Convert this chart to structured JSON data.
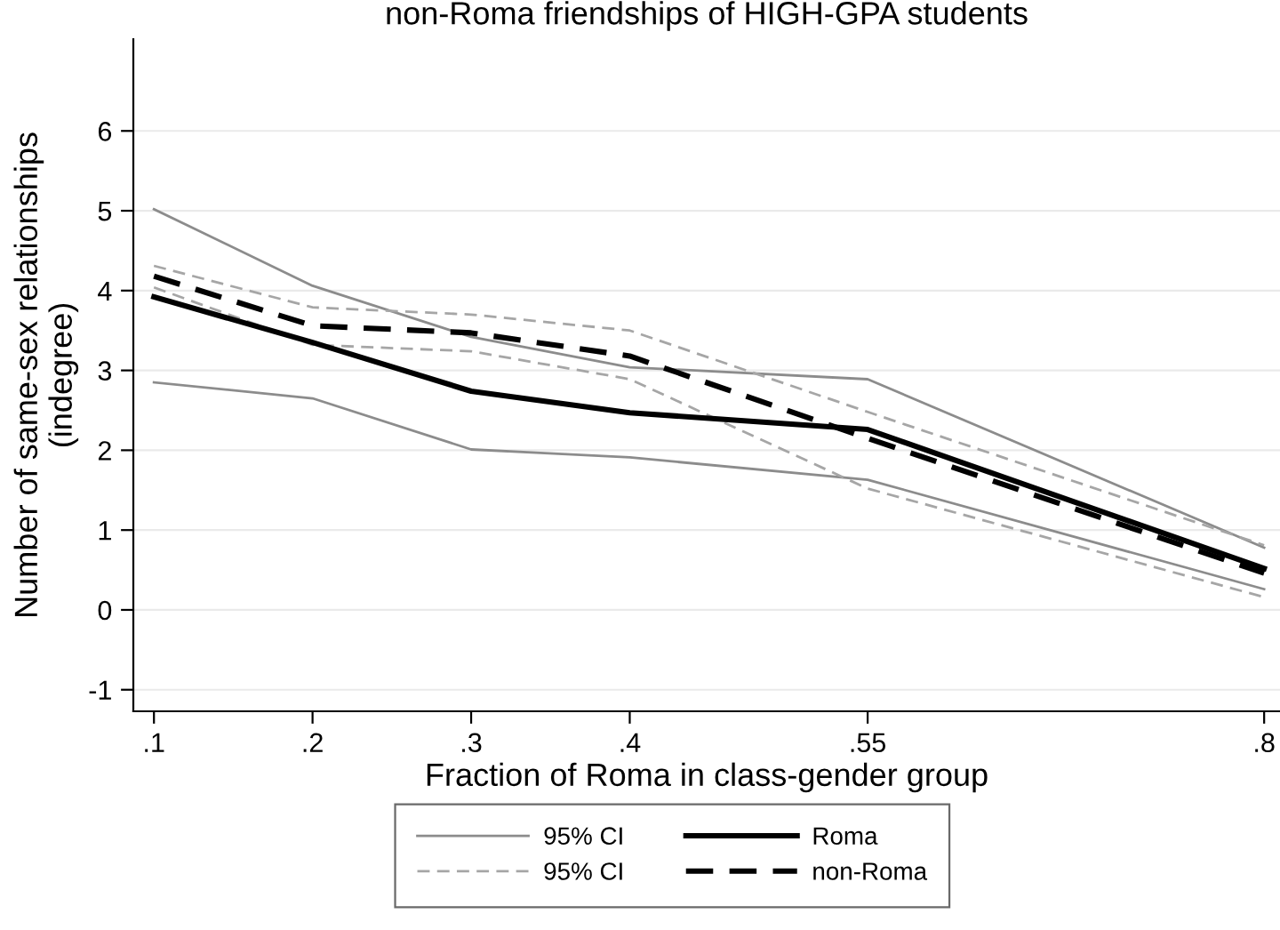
{
  "chart_data": {
    "type": "line",
    "title": "non-Roma friendships of HIGH-GPA students",
    "xlabel": "Fraction of Roma in class-gender group",
    "ylabel": "Number of same-sex relationships\n(indegree)",
    "x": [
      0.1,
      0.2,
      0.3,
      0.4,
      0.55,
      0.8
    ],
    "xlim": [
      0.087,
      0.81
    ],
    "xticks": [
      {
        "value": 0.1,
        "label": ".1"
      },
      {
        "value": 0.2,
        "label": ".2"
      },
      {
        "value": 0.3,
        "label": ".3"
      },
      {
        "value": 0.4,
        "label": ".4"
      },
      {
        "value": 0.55,
        "label": ".55"
      },
      {
        "value": 0.8,
        "label": ".8"
      }
    ],
    "ylim": [
      -1.27,
      7.15
    ],
    "yticks": [
      -1,
      0,
      1,
      2,
      3,
      4,
      5,
      6
    ],
    "grid": "y",
    "legend": "bottom",
    "series": [
      {
        "name": "95% CI",
        "color": "#8c8c8c",
        "line_style": "solid",
        "values": [
          5.02,
          4.06,
          3.42,
          3.04,
          2.89,
          0.78
        ]
      },
      {
        "color": "#8c8c8c",
        "line_style": "solid",
        "values": [
          2.85,
          2.65,
          2.01,
          1.91,
          1.63,
          0.26
        ]
      },
      {
        "name": "95% CI",
        "color": "#a6a6a6",
        "line_style": "dashed",
        "values": [
          4.31,
          3.79,
          3.7,
          3.5,
          2.48,
          0.81
        ]
      },
      {
        "color": "#a6a6a6",
        "line_style": "dashed",
        "values": [
          4.04,
          3.32,
          3.24,
          2.89,
          1.52,
          0.16
        ]
      },
      {
        "name": "Roma",
        "color": "#000000",
        "line_style": "solid",
        "values": [
          3.92,
          3.35,
          2.74,
          2.47,
          2.26,
          0.52
        ]
      },
      {
        "name": "non-Roma",
        "color": "#000000",
        "line_style": "dashed",
        "values": [
          4.18,
          3.56,
          3.47,
          3.18,
          2.15,
          0.46
        ]
      }
    ]
  }
}
